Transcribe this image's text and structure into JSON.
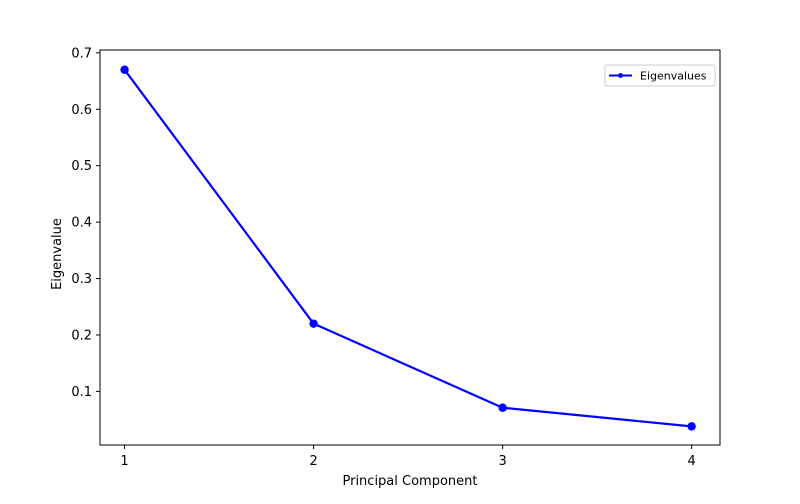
{
  "chart_data": {
    "type": "line",
    "title": "",
    "xlabel": "Principal Component",
    "ylabel": "Eigenvalue",
    "x": [
      1,
      2,
      3,
      4
    ],
    "x_ticks": [
      1,
      2,
      3,
      4
    ],
    "y_ticks": [
      0.1,
      0.2,
      0.3,
      0.4,
      0.5,
      0.6,
      0.7
    ],
    "y_tick_labels": [
      "0.1",
      "0.2",
      "0.3",
      "0.4",
      "0.5",
      "0.6",
      "0.7"
    ],
    "xlim": [
      0.87,
      4.15
    ],
    "ylim": [
      0.005,
      0.705
    ],
    "grid": false,
    "legend_position": "top-right",
    "series": [
      {
        "name": "Eigenvalues",
        "values": [
          0.67,
          0.22,
          0.071,
          0.038
        ],
        "color": "#0000ff",
        "marker": "circle"
      }
    ]
  }
}
